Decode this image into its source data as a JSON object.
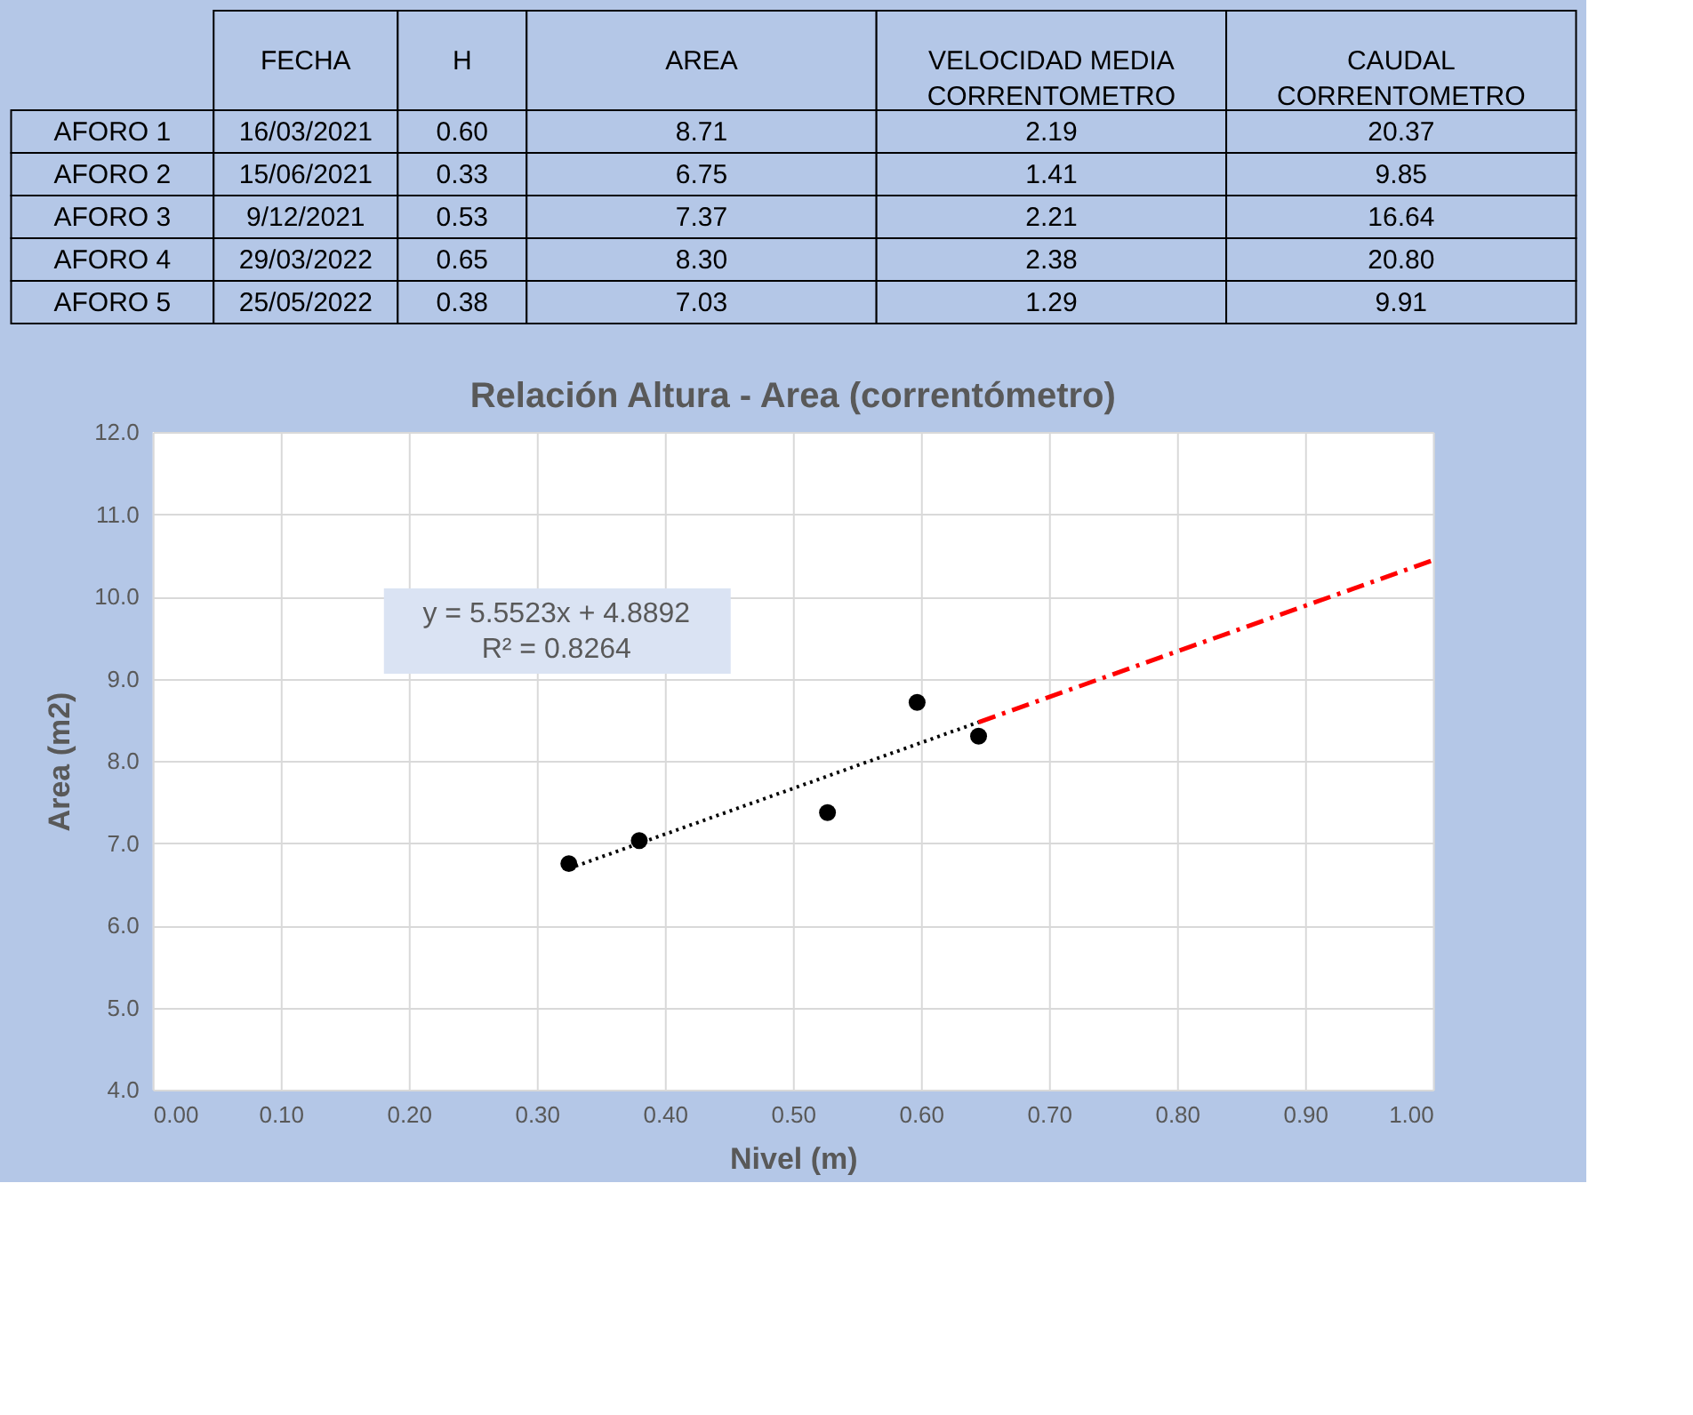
{
  "chart_data": [
    {
      "type": "other",
      "categories": [
        "FECHA",
        "H",
        "AREA",
        "VELOCIDAD MEDIA CORRENTOMETRO",
        "CAUDAL CORRENTOMETRO"
      ],
      "y_categories": [
        "AFORO 1",
        "AFORO 2",
        "AFORO 3",
        "AFORO 4",
        "AFORO 5"
      ],
      "cell_labels": [
        [
          "16/03/2021",
          "0.60",
          "8.71",
          "2.19",
          "20.37"
        ],
        [
          "15/06/2021",
          "0.33",
          "6.75",
          "1.41",
          "9.85"
        ],
        [
          "9/12/2021",
          "0.53",
          "7.37",
          "2.21",
          "16.64"
        ],
        [
          "29/03/2022",
          "0.65",
          "8.30",
          "2.38",
          "20.80"
        ],
        [
          "25/05/2022",
          "0.38",
          "7.03",
          "1.29",
          "9.91"
        ]
      ]
    },
    {
      "type": "scatter",
      "title": "Relación Altura - Area (correntómetro)",
      "xlabel": "Nivel (m)",
      "ylabel": "Area (m2)",
      "xlim": [
        0,
        1
      ],
      "xticks": [
        {
          "value": 0,
          "label": "0.00"
        },
        {
          "value": 0.1,
          "label": "0.10"
        },
        {
          "value": 0.2,
          "label": "0.20"
        },
        {
          "value": 0.3,
          "label": "0.30"
        },
        {
          "value": 0.4,
          "label": "0.40"
        },
        {
          "value": 0.5,
          "label": "0.50"
        },
        {
          "value": 0.6,
          "label": "0.60"
        },
        {
          "value": 0.7,
          "label": "0.70"
        },
        {
          "value": 0.8,
          "label": "0.80"
        },
        {
          "value": 0.9,
          "label": "0.90"
        },
        {
          "value": 1,
          "label": "1.00"
        }
      ],
      "ylim": [
        4,
        12
      ],
      "yticks": [
        {
          "value": 4,
          "label": "4.0"
        },
        {
          "value": 5,
          "label": "5.0"
        },
        {
          "value": 6,
          "label": "6.0"
        },
        {
          "value": 7,
          "label": "7.0"
        },
        {
          "value": 8,
          "label": "8.0"
        },
        {
          "value": 9,
          "label": "9.0"
        },
        {
          "value": 10,
          "label": "10.0"
        },
        {
          "value": 11,
          "label": "11.0"
        },
        {
          "value": 12,
          "label": "12.0"
        }
      ],
      "grid": true,
      "marker": "circle",
      "annotations": [
        "y = 5.5523x + 4.8892",
        "R² = 0.8264"
      ],
      "series": [
        {
          "type": "scatter",
          "color": "#000000",
          "x": [
            0.597,
            0.325,
            0.527,
            0.645,
            0.38
          ],
          "values": [
            8.71,
            6.75,
            7.37,
            8.3,
            7.03
          ]
        },
        {
          "type": "line",
          "color": "#000000",
          "line_style": "dotted",
          "marker": "none",
          "x": [
            0.325,
            0.645
          ],
          "values": [
            6.69,
            8.47
          ]
        },
        {
          "type": "line",
          "color": "#ff0000",
          "line_style": "dashed",
          "marker": "none",
          "x": [
            0.645,
            1.0
          ],
          "values": [
            8.47,
            10.44
          ]
        }
      ]
    }
  ]
}
